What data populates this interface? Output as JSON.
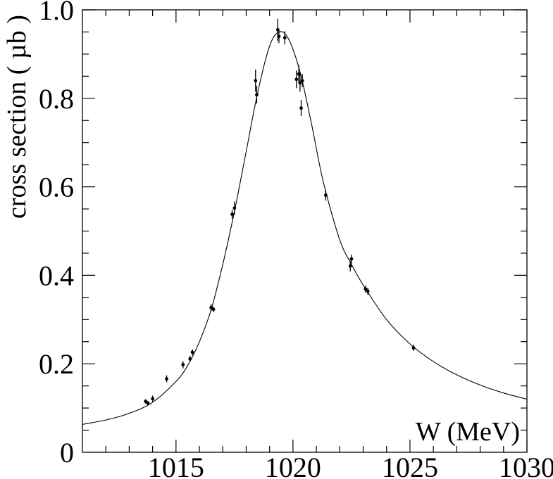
{
  "chart_data": {
    "type": "scatter",
    "xlabel": "W (MeV)",
    "ylabel": "cross section ( µb )",
    "xlim": [
      1011,
      1030
    ],
    "ylim": [
      0,
      1.0
    ],
    "x_ticks": [
      1015,
      1020,
      1025,
      1030
    ],
    "x_tick_labels": [
      "1015",
      "1020",
      "1025",
      "1030"
    ],
    "y_ticks": [
      0,
      0.2,
      0.4,
      0.6,
      0.8,
      1.0
    ],
    "y_tick_labels": [
      "0",
      "0.2",
      "0.4",
      "0.6",
      "0.8",
      "1.0"
    ],
    "grid": false,
    "legend": "none",
    "colors": {
      "marks": "#000000",
      "background": "#ffffff"
    },
    "fit_curve": {
      "shape": "asymmetric-peak",
      "peak_x": 1019.4,
      "peak_y": 0.95,
      "samples": [
        [
          1011.0,
          0.063
        ],
        [
          1012.0,
          0.073
        ],
        [
          1013.0,
          0.088
        ],
        [
          1014.0,
          0.113
        ],
        [
          1015.0,
          0.16
        ],
        [
          1015.5,
          0.196
        ],
        [
          1016.0,
          0.25
        ],
        [
          1016.5,
          0.322
        ],
        [
          1017.0,
          0.425
        ],
        [
          1017.5,
          0.545
        ],
        [
          1018.0,
          0.68
        ],
        [
          1018.5,
          0.815
        ],
        [
          1019.0,
          0.918
        ],
        [
          1019.4,
          0.95
        ],
        [
          1019.8,
          0.935
        ],
        [
          1020.3,
          0.86
        ],
        [
          1020.8,
          0.74
        ],
        [
          1021.3,
          0.61
        ],
        [
          1022.0,
          0.48
        ],
        [
          1022.5,
          0.425
        ],
        [
          1023.0,
          0.378
        ],
        [
          1024.0,
          0.3
        ],
        [
          1025.0,
          0.245
        ],
        [
          1026.0,
          0.205
        ],
        [
          1027.0,
          0.175
        ],
        [
          1028.0,
          0.152
        ],
        [
          1029.0,
          0.134
        ],
        [
          1030.0,
          0.12
        ]
      ]
    },
    "series": [
      {
        "points": [
          {
            "x": 1013.7,
            "y": 0.115,
            "err": 0.005
          },
          {
            "x": 1013.8,
            "y": 0.111,
            "err": 0.005
          },
          {
            "x": 1014.0,
            "y": 0.121,
            "err": 0.007
          },
          {
            "x": 1014.6,
            "y": 0.166,
            "err": 0.008
          },
          {
            "x": 1015.3,
            "y": 0.198,
            "err": 0.008
          },
          {
            "x": 1015.6,
            "y": 0.211,
            "err": 0.007
          },
          {
            "x": 1015.7,
            "y": 0.226,
            "err": 0.007
          },
          {
            "x": 1016.5,
            "y": 0.327,
            "err": 0.008
          },
          {
            "x": 1016.6,
            "y": 0.323,
            "err": 0.006
          },
          {
            "x": 1017.4,
            "y": 0.538,
            "err": 0.01
          },
          {
            "x": 1017.5,
            "y": 0.552,
            "err": 0.015
          },
          {
            "x": 1018.4,
            "y": 0.84,
            "err": 0.025
          },
          {
            "x": 1018.45,
            "y": 0.808,
            "err": 0.02
          },
          {
            "x": 1019.35,
            "y": 0.955,
            "err": 0.025
          },
          {
            "x": 1019.4,
            "y": 0.94,
            "err": 0.015
          },
          {
            "x": 1019.65,
            "y": 0.937,
            "err": 0.015
          },
          {
            "x": 1020.15,
            "y": 0.843,
            "err": 0.02
          },
          {
            "x": 1020.25,
            "y": 0.855,
            "err": 0.02
          },
          {
            "x": 1020.3,
            "y": 0.835,
            "err": 0.02
          },
          {
            "x": 1020.35,
            "y": 0.778,
            "err": 0.018
          },
          {
            "x": 1020.4,
            "y": 0.84,
            "err": 0.015
          },
          {
            "x": 1021.4,
            "y": 0.581,
            "err": 0.012
          },
          {
            "x": 1022.45,
            "y": 0.421,
            "err": 0.012
          },
          {
            "x": 1022.5,
            "y": 0.437,
            "err": 0.01
          },
          {
            "x": 1023.1,
            "y": 0.369,
            "err": 0.008
          },
          {
            "x": 1023.2,
            "y": 0.364,
            "err": 0.008
          },
          {
            "x": 1025.15,
            "y": 0.236,
            "err": 0.007
          }
        ]
      }
    ]
  }
}
